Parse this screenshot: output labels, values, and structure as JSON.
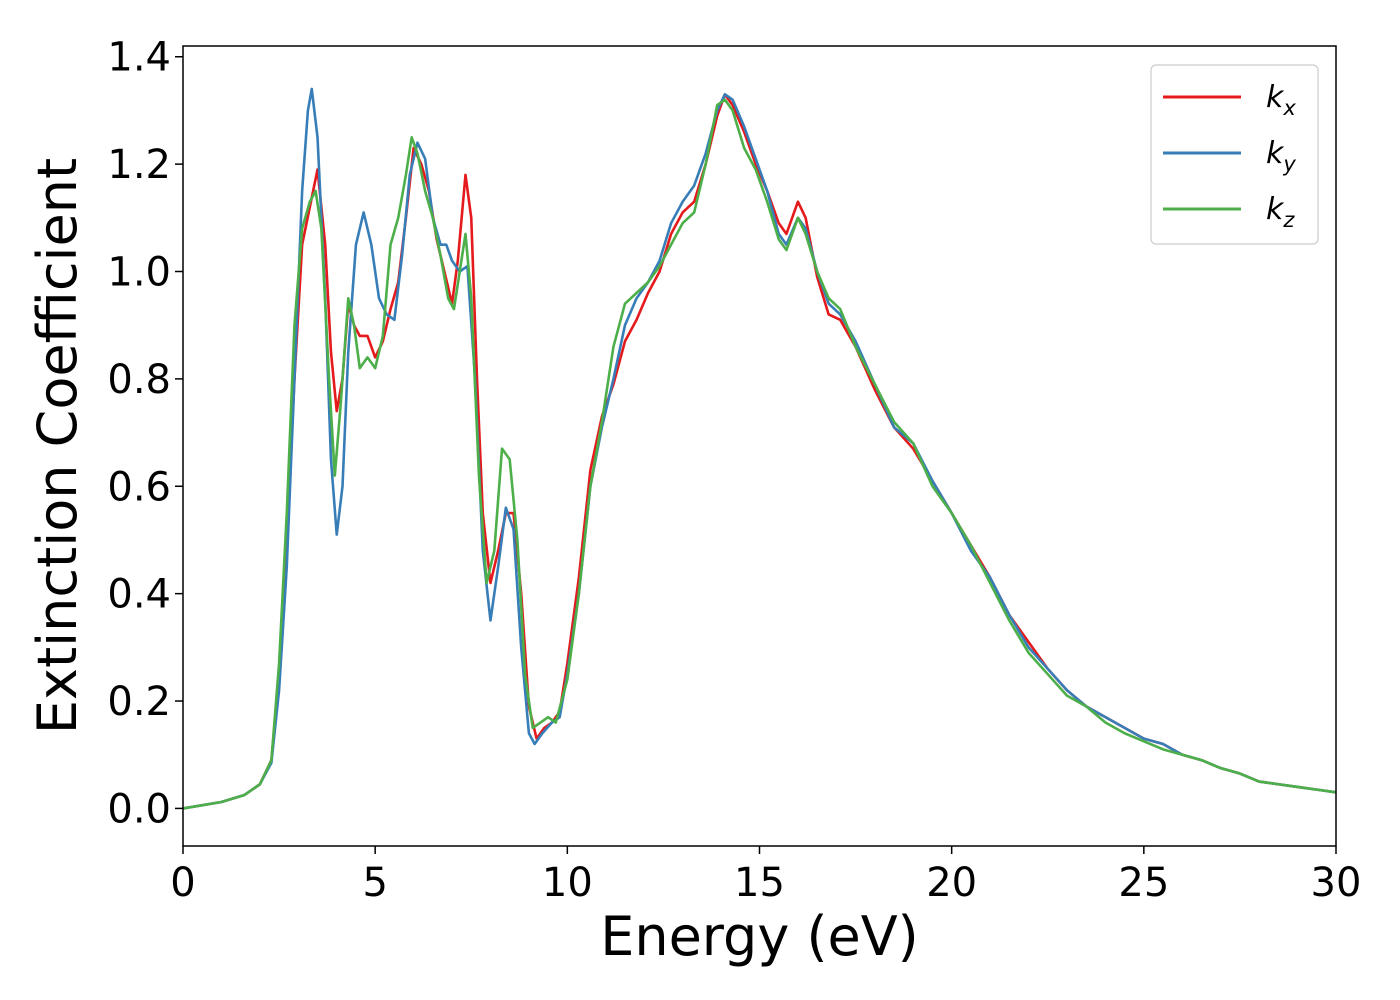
{
  "chart_data": {
    "type": "line",
    "title": "",
    "xlabel": "Energy (eV)",
    "ylabel": "Extinction Coefficient",
    "xlim": [
      0,
      30
    ],
    "ylim": [
      -0.07,
      1.42
    ],
    "x_ticks": [
      0,
      5,
      10,
      15,
      20,
      25,
      30
    ],
    "y_ticks": [
      0.0,
      0.2,
      0.4,
      0.6,
      0.8,
      1.0,
      1.2,
      1.4
    ],
    "x_tick_labels": [
      "0",
      "5",
      "10",
      "15",
      "20",
      "25",
      "30"
    ],
    "y_tick_labels": [
      "0.0",
      "0.2",
      "0.4",
      "0.6",
      "0.8",
      "1.0",
      "1.2",
      "1.4"
    ],
    "grid": false,
    "legend_position": "top-right",
    "series": [
      {
        "name": "k",
        "subscript": "x",
        "color": "#e41a1c",
        "points": [
          [
            0,
            0.0
          ],
          [
            1.0,
            0.012
          ],
          [
            1.6,
            0.025
          ],
          [
            2.0,
            0.045
          ],
          [
            2.3,
            0.09
          ],
          [
            2.5,
            0.25
          ],
          [
            2.7,
            0.5
          ],
          [
            2.9,
            0.8
          ],
          [
            3.1,
            1.05
          ],
          [
            3.3,
            1.12
          ],
          [
            3.5,
            1.19
          ],
          [
            3.7,
            1.05
          ],
          [
            3.85,
            0.85
          ],
          [
            4.0,
            0.74
          ],
          [
            4.15,
            0.8
          ],
          [
            4.3,
            0.94
          ],
          [
            4.45,
            0.9
          ],
          [
            4.6,
            0.88
          ],
          [
            4.8,
            0.88
          ],
          [
            5.0,
            0.84
          ],
          [
            5.2,
            0.87
          ],
          [
            5.4,
            0.93
          ],
          [
            5.6,
            0.98
          ],
          [
            5.8,
            1.1
          ],
          [
            6.0,
            1.23
          ],
          [
            6.2,
            1.2
          ],
          [
            6.4,
            1.15
          ],
          [
            6.6,
            1.06
          ],
          [
            6.8,
            1.0
          ],
          [
            7.0,
            0.94
          ],
          [
            7.15,
            1.02
          ],
          [
            7.35,
            1.18
          ],
          [
            7.5,
            1.1
          ],
          [
            7.65,
            0.8
          ],
          [
            7.8,
            0.55
          ],
          [
            8.0,
            0.42
          ],
          [
            8.2,
            0.48
          ],
          [
            8.4,
            0.55
          ],
          [
            8.6,
            0.55
          ],
          [
            8.8,
            0.4
          ],
          [
            9.0,
            0.19
          ],
          [
            9.2,
            0.13
          ],
          [
            9.4,
            0.15
          ],
          [
            9.6,
            0.16
          ],
          [
            9.8,
            0.18
          ],
          [
            10.0,
            0.27
          ],
          [
            10.3,
            0.43
          ],
          [
            10.6,
            0.63
          ],
          [
            10.9,
            0.73
          ],
          [
            11.2,
            0.79
          ],
          [
            11.5,
            0.87
          ],
          [
            11.8,
            0.91
          ],
          [
            12.1,
            0.96
          ],
          [
            12.4,
            1.0
          ],
          [
            12.7,
            1.07
          ],
          [
            13.0,
            1.11
          ],
          [
            13.3,
            1.13
          ],
          [
            13.6,
            1.2
          ],
          [
            13.9,
            1.29
          ],
          [
            14.1,
            1.33
          ],
          [
            14.3,
            1.31
          ],
          [
            14.6,
            1.26
          ],
          [
            14.9,
            1.2
          ],
          [
            15.2,
            1.15
          ],
          [
            15.5,
            1.09
          ],
          [
            15.7,
            1.07
          ],
          [
            16.0,
            1.13
          ],
          [
            16.2,
            1.1
          ],
          [
            16.5,
            0.99
          ],
          [
            16.8,
            0.92
          ],
          [
            17.1,
            0.91
          ],
          [
            17.5,
            0.86
          ],
          [
            18.0,
            0.78
          ],
          [
            18.5,
            0.71
          ],
          [
            19.0,
            0.67
          ],
          [
            19.5,
            0.61
          ],
          [
            20.0,
            0.55
          ],
          [
            20.5,
            0.49
          ],
          [
            21.0,
            0.43
          ],
          [
            21.5,
            0.36
          ],
          [
            22.0,
            0.31
          ],
          [
            22.5,
            0.26
          ],
          [
            23.0,
            0.22
          ],
          [
            23.5,
            0.19
          ],
          [
            24.0,
            0.17
          ],
          [
            24.5,
            0.15
          ],
          [
            25.0,
            0.13
          ],
          [
            25.5,
            0.12
          ],
          [
            26.0,
            0.1
          ],
          [
            26.5,
            0.09
          ],
          [
            27.0,
            0.075
          ],
          [
            27.5,
            0.065
          ],
          [
            28.0,
            0.05
          ],
          [
            28.5,
            0.045
          ],
          [
            29.0,
            0.04
          ],
          [
            29.5,
            0.035
          ],
          [
            30.0,
            0.03
          ]
        ]
      },
      {
        "name": "k",
        "subscript": "y",
        "color": "#377eb8",
        "points": [
          [
            0,
            0.0
          ],
          [
            1.0,
            0.012
          ],
          [
            1.6,
            0.025
          ],
          [
            2.0,
            0.045
          ],
          [
            2.3,
            0.085
          ],
          [
            2.5,
            0.22
          ],
          [
            2.7,
            0.45
          ],
          [
            2.9,
            0.8
          ],
          [
            3.1,
            1.15
          ],
          [
            3.25,
            1.3
          ],
          [
            3.35,
            1.34
          ],
          [
            3.5,
            1.25
          ],
          [
            3.7,
            0.95
          ],
          [
            3.85,
            0.65
          ],
          [
            4.0,
            0.51
          ],
          [
            4.15,
            0.6
          ],
          [
            4.3,
            0.85
          ],
          [
            4.5,
            1.05
          ],
          [
            4.7,
            1.11
          ],
          [
            4.9,
            1.05
          ],
          [
            5.1,
            0.95
          ],
          [
            5.3,
            0.92
          ],
          [
            5.5,
            0.91
          ],
          [
            5.7,
            1.03
          ],
          [
            5.9,
            1.18
          ],
          [
            6.1,
            1.24
          ],
          [
            6.3,
            1.21
          ],
          [
            6.5,
            1.1
          ],
          [
            6.7,
            1.05
          ],
          [
            6.85,
            1.05
          ],
          [
            7.0,
            1.02
          ],
          [
            7.2,
            1.0
          ],
          [
            7.4,
            1.01
          ],
          [
            7.6,
            0.8
          ],
          [
            7.8,
            0.48
          ],
          [
            8.0,
            0.35
          ],
          [
            8.2,
            0.45
          ],
          [
            8.4,
            0.56
          ],
          [
            8.6,
            0.52
          ],
          [
            8.8,
            0.3
          ],
          [
            9.0,
            0.14
          ],
          [
            9.15,
            0.12
          ],
          [
            9.35,
            0.14
          ],
          [
            9.6,
            0.16
          ],
          [
            9.8,
            0.17
          ],
          [
            10.0,
            0.25
          ],
          [
            10.3,
            0.4
          ],
          [
            10.6,
            0.6
          ],
          [
            10.9,
            0.71
          ],
          [
            11.2,
            0.8
          ],
          [
            11.5,
            0.9
          ],
          [
            11.8,
            0.95
          ],
          [
            12.1,
            0.98
          ],
          [
            12.4,
            1.02
          ],
          [
            12.7,
            1.09
          ],
          [
            13.0,
            1.13
          ],
          [
            13.3,
            1.16
          ],
          [
            13.6,
            1.22
          ],
          [
            13.9,
            1.3
          ],
          [
            14.1,
            1.33
          ],
          [
            14.3,
            1.32
          ],
          [
            14.6,
            1.27
          ],
          [
            14.9,
            1.21
          ],
          [
            15.2,
            1.15
          ],
          [
            15.5,
            1.07
          ],
          [
            15.7,
            1.05
          ],
          [
            16.0,
            1.1
          ],
          [
            16.2,
            1.08
          ],
          [
            16.5,
            1.0
          ],
          [
            16.8,
            0.94
          ],
          [
            17.1,
            0.92
          ],
          [
            17.5,
            0.87
          ],
          [
            18.0,
            0.79
          ],
          [
            18.5,
            0.71
          ],
          [
            19.0,
            0.68
          ],
          [
            19.5,
            0.61
          ],
          [
            20.0,
            0.55
          ],
          [
            20.5,
            0.48
          ],
          [
            21.0,
            0.43
          ],
          [
            21.5,
            0.36
          ],
          [
            22.0,
            0.3
          ],
          [
            22.5,
            0.26
          ],
          [
            23.0,
            0.22
          ],
          [
            23.5,
            0.19
          ],
          [
            24.0,
            0.17
          ],
          [
            24.5,
            0.15
          ],
          [
            25.0,
            0.13
          ],
          [
            25.5,
            0.12
          ],
          [
            26.0,
            0.1
          ],
          [
            26.5,
            0.09
          ],
          [
            27.0,
            0.075
          ],
          [
            27.5,
            0.065
          ],
          [
            28.0,
            0.05
          ],
          [
            28.5,
            0.045
          ],
          [
            29.0,
            0.04
          ],
          [
            29.5,
            0.035
          ],
          [
            30.0,
            0.03
          ]
        ]
      },
      {
        "name": "k",
        "subscript": "z",
        "color": "#4daf4a",
        "points": [
          [
            0,
            0.0
          ],
          [
            1.0,
            0.012
          ],
          [
            1.6,
            0.025
          ],
          [
            2.0,
            0.045
          ],
          [
            2.3,
            0.09
          ],
          [
            2.5,
            0.27
          ],
          [
            2.7,
            0.55
          ],
          [
            2.9,
            0.9
          ],
          [
            3.1,
            1.08
          ],
          [
            3.3,
            1.13
          ],
          [
            3.45,
            1.15
          ],
          [
            3.6,
            1.08
          ],
          [
            3.8,
            0.8
          ],
          [
            3.95,
            0.62
          ],
          [
            4.1,
            0.75
          ],
          [
            4.3,
            0.95
          ],
          [
            4.45,
            0.9
          ],
          [
            4.6,
            0.82
          ],
          [
            4.8,
            0.84
          ],
          [
            5.0,
            0.82
          ],
          [
            5.2,
            0.88
          ],
          [
            5.4,
            1.05
          ],
          [
            5.6,
            1.1
          ],
          [
            5.8,
            1.18
          ],
          [
            5.95,
            1.25
          ],
          [
            6.1,
            1.22
          ],
          [
            6.3,
            1.15
          ],
          [
            6.5,
            1.1
          ],
          [
            6.7,
            1.03
          ],
          [
            6.9,
            0.95
          ],
          [
            7.05,
            0.93
          ],
          [
            7.2,
            1.0
          ],
          [
            7.35,
            1.07
          ],
          [
            7.5,
            0.95
          ],
          [
            7.7,
            0.62
          ],
          [
            7.9,
            0.42
          ],
          [
            8.1,
            0.48
          ],
          [
            8.3,
            0.67
          ],
          [
            8.5,
            0.65
          ],
          [
            8.7,
            0.5
          ],
          [
            8.9,
            0.25
          ],
          [
            9.1,
            0.15
          ],
          [
            9.3,
            0.16
          ],
          [
            9.5,
            0.17
          ],
          [
            9.7,
            0.16
          ],
          [
            10.0,
            0.24
          ],
          [
            10.3,
            0.4
          ],
          [
            10.6,
            0.6
          ],
          [
            10.9,
            0.72
          ],
          [
            11.2,
            0.86
          ],
          [
            11.5,
            0.94
          ],
          [
            11.8,
            0.96
          ],
          [
            12.1,
            0.98
          ],
          [
            12.4,
            1.01
          ],
          [
            12.7,
            1.05
          ],
          [
            13.0,
            1.09
          ],
          [
            13.3,
            1.11
          ],
          [
            13.6,
            1.2
          ],
          [
            13.9,
            1.31
          ],
          [
            14.1,
            1.32
          ],
          [
            14.3,
            1.3
          ],
          [
            14.6,
            1.23
          ],
          [
            14.9,
            1.19
          ],
          [
            15.2,
            1.13
          ],
          [
            15.5,
            1.06
          ],
          [
            15.7,
            1.04
          ],
          [
            16.0,
            1.1
          ],
          [
            16.2,
            1.07
          ],
          [
            16.5,
            1.0
          ],
          [
            16.8,
            0.95
          ],
          [
            17.1,
            0.93
          ],
          [
            17.5,
            0.86
          ],
          [
            18.0,
            0.79
          ],
          [
            18.5,
            0.72
          ],
          [
            19.0,
            0.68
          ],
          [
            19.5,
            0.6
          ],
          [
            20.0,
            0.55
          ],
          [
            20.5,
            0.49
          ],
          [
            21.0,
            0.42
          ],
          [
            21.5,
            0.35
          ],
          [
            22.0,
            0.29
          ],
          [
            22.5,
            0.25
          ],
          [
            23.0,
            0.21
          ],
          [
            23.5,
            0.19
          ],
          [
            24.0,
            0.16
          ],
          [
            24.5,
            0.14
          ],
          [
            25.0,
            0.125
          ],
          [
            25.5,
            0.11
          ],
          [
            26.0,
            0.1
          ],
          [
            26.5,
            0.09
          ],
          [
            27.0,
            0.075
          ],
          [
            27.5,
            0.065
          ],
          [
            28.0,
            0.05
          ],
          [
            28.5,
            0.045
          ],
          [
            29.0,
            0.04
          ],
          [
            29.5,
            0.035
          ],
          [
            30.0,
            0.03
          ]
        ]
      }
    ]
  }
}
